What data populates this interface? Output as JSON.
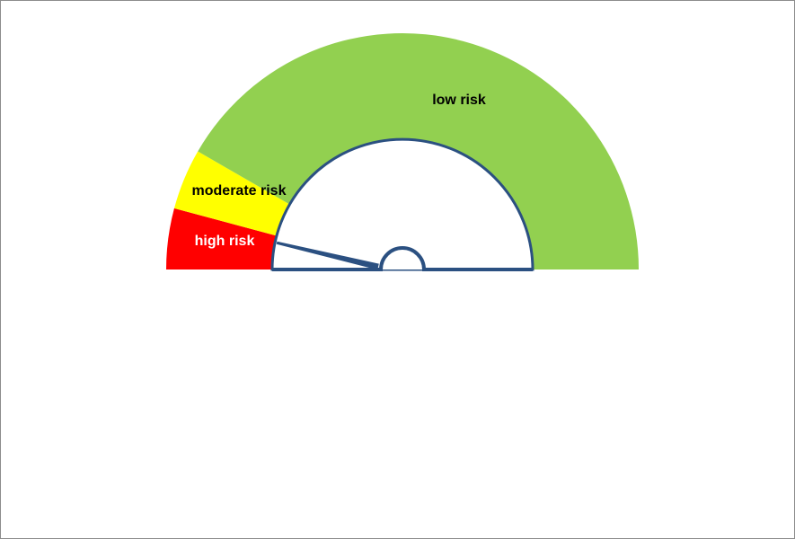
{
  "chart_data": {
    "type": "gauge",
    "title": "",
    "scale": {
      "min": 0,
      "max": 180
    },
    "bands": [
      {
        "label": "high risk",
        "from": 0,
        "to": 15,
        "color": "#ff0000",
        "label_color": "#ffffff"
      },
      {
        "label": "moderate risk",
        "from": 15,
        "to": 30,
        "color": "#ffff00",
        "label_color": "#000000"
      },
      {
        "label": "low risk",
        "from": 30,
        "to": 180,
        "color": "#92d050",
        "label_color": "#000000"
      }
    ],
    "needle_value": 12,
    "needle_color": "#2b5081",
    "hub_color": "#2b5081"
  }
}
